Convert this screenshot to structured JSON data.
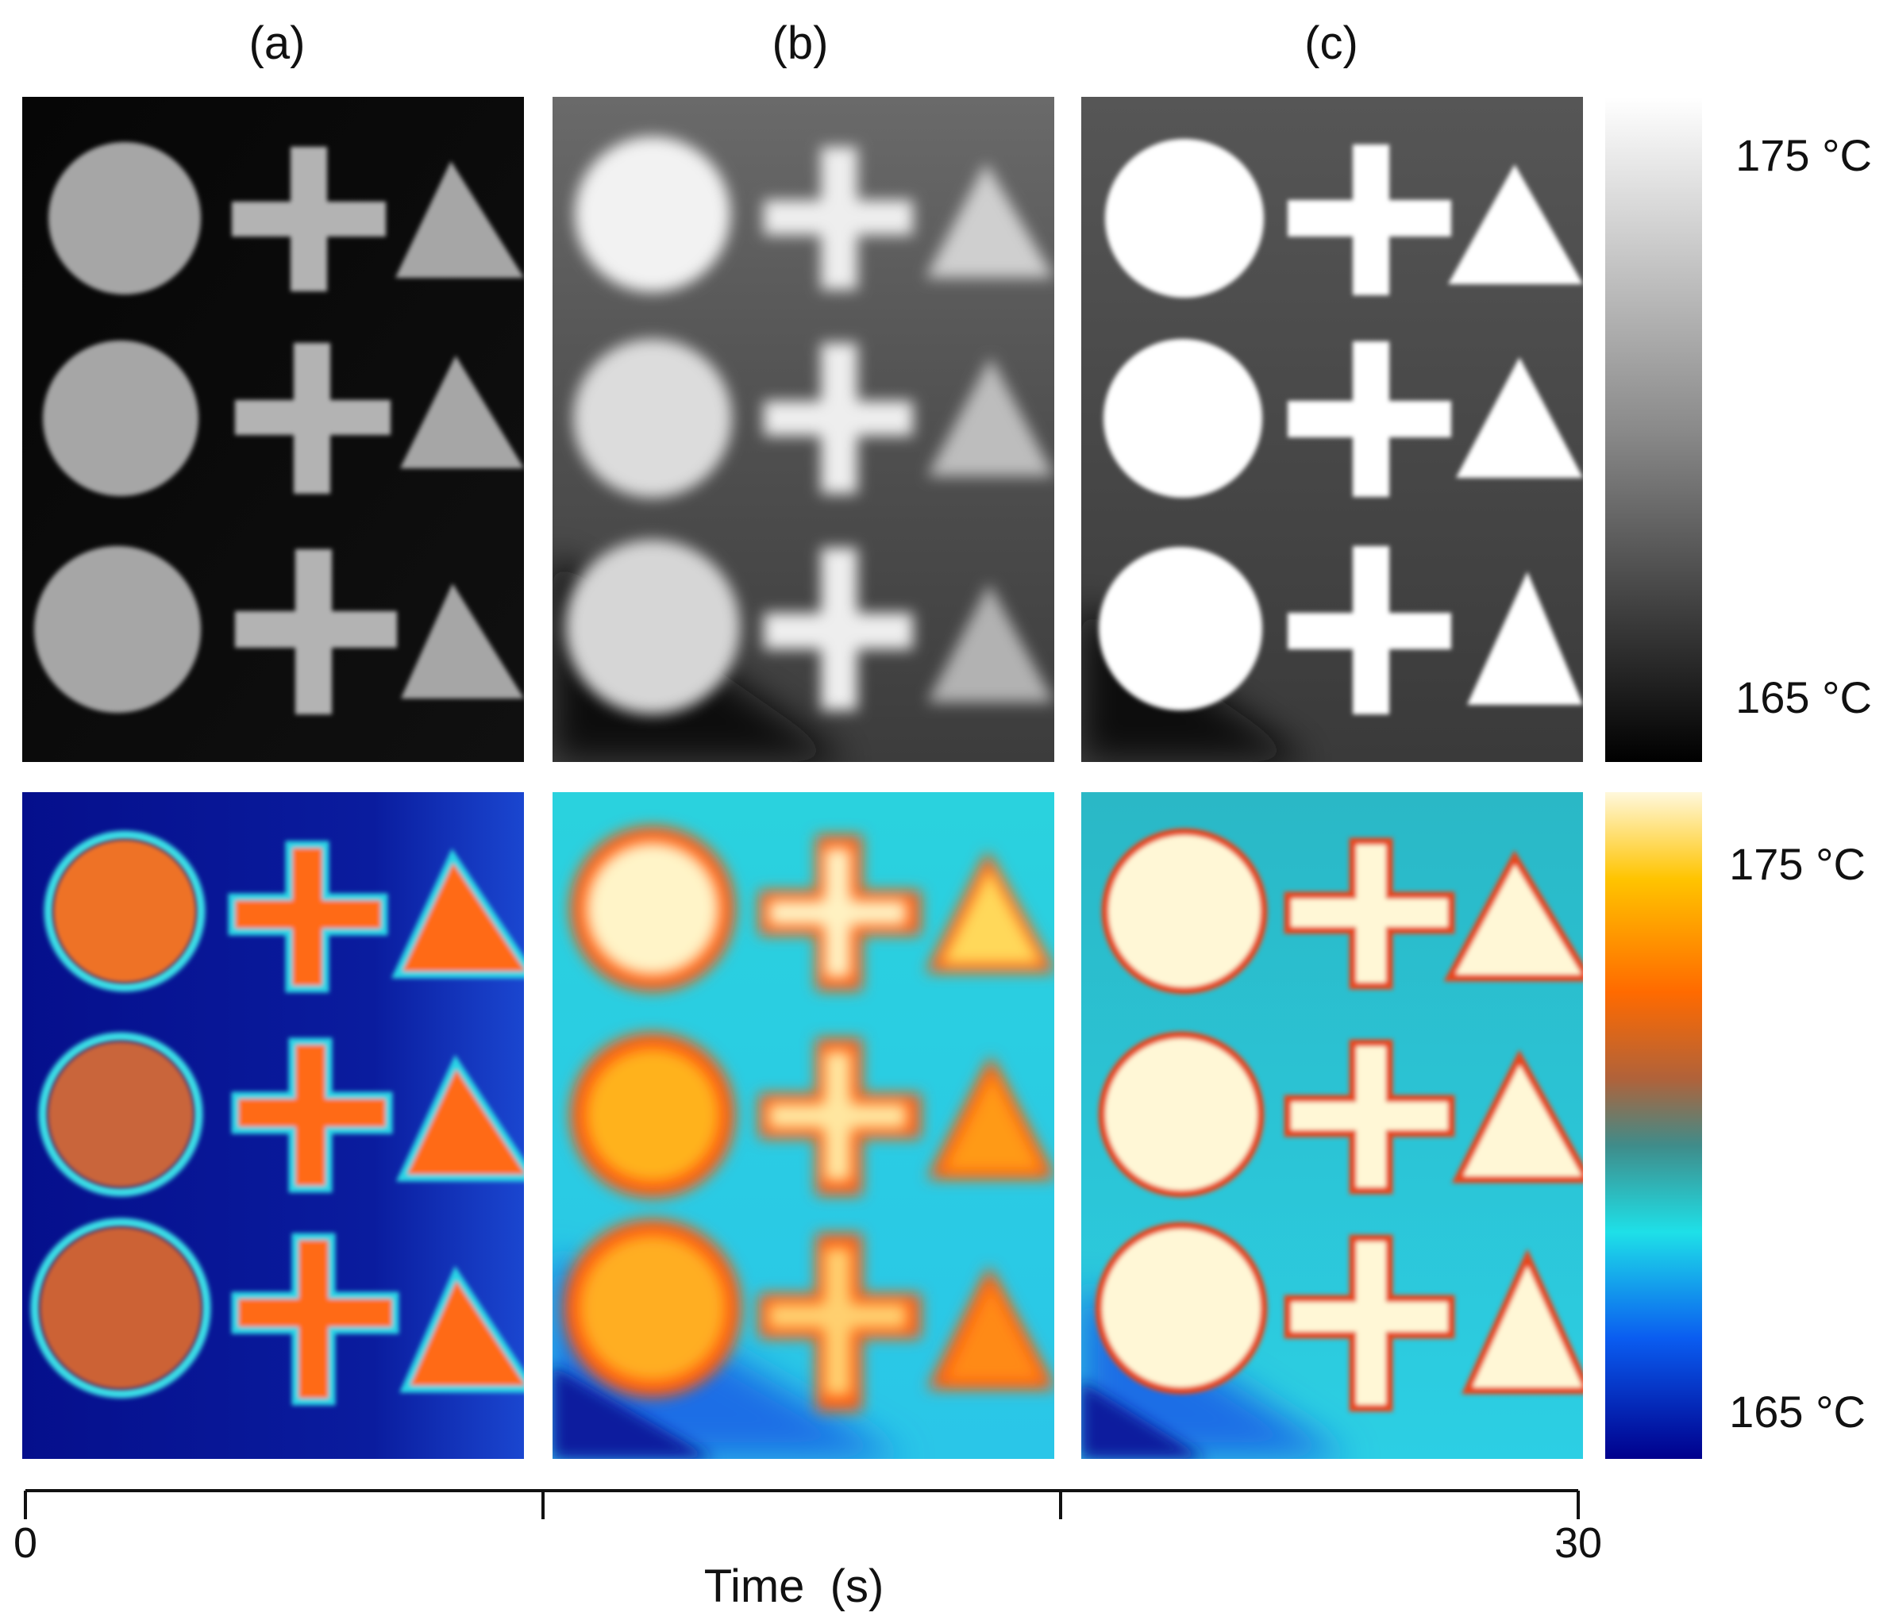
{
  "figure": {
    "panel_labels": [
      "(a)",
      "(b)",
      "(c)"
    ],
    "colorbar_gray": {
      "max_label": "175 °C",
      "min_label": "165 °C"
    },
    "colorbar_color": {
      "max_label": "175 °C",
      "min_label": "165 °C"
    },
    "time_axis": {
      "label": "Time  (s)",
      "start_tick": "0",
      "end_tick": "30",
      "range": [
        0,
        30
      ],
      "tick_values": [
        0,
        10,
        20,
        30
      ]
    },
    "rows": [
      "grayscale thermal image",
      "false-colour thermal image"
    ],
    "shapes": [
      "circle",
      "cross",
      "triangle"
    ],
    "temperature_range_c": [
      165,
      175
    ],
    "colors": {
      "cold_blue": "#0a1496",
      "cyan": "#28d8e6",
      "orange": "#f06a1a",
      "hot_cream": "#fff7d6"
    }
  }
}
